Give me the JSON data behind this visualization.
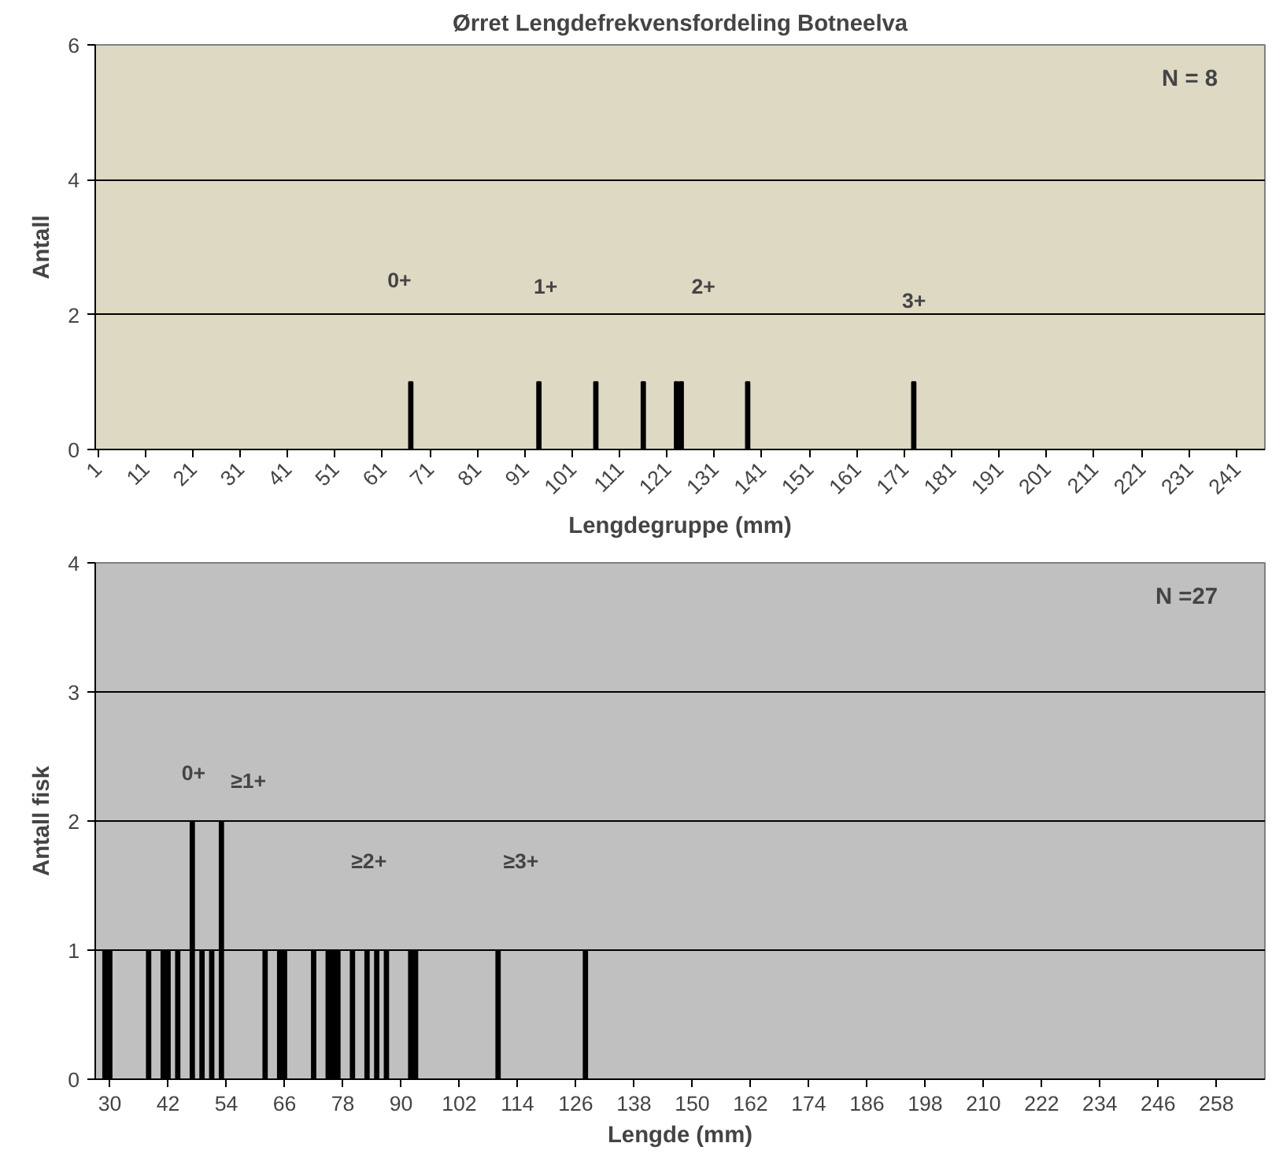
{
  "chart_data": [
    {
      "type": "bar",
      "title": "Ørret Lengdefrekvensfordeling Botneelva",
      "xlabel": "Lengdegruppe (mm)",
      "ylabel": "Antall",
      "color": "#000000",
      "x": [
        67,
        94,
        106,
        116,
        123,
        124,
        138,
        173
      ],
      "values": [
        1,
        1,
        1,
        1,
        1,
        1,
        1,
        1
      ],
      "xlim": [
        0.5,
        247
      ],
      "ylim": [
        0,
        6
      ],
      "xticks": [
        1,
        11,
        21,
        31,
        41,
        51,
        61,
        71,
        81,
        91,
        101,
        111,
        121,
        131,
        141,
        151,
        161,
        171,
        181,
        191,
        201,
        211,
        221,
        231,
        241
      ],
      "yticks": [
        0,
        2,
        4,
        6
      ],
      "grid": "y",
      "annotations": [
        "N = 8",
        "0+",
        "1+",
        "2+",
        "3+"
      ]
    },
    {
      "type": "bar",
      "xlabel": "Lengde (mm)",
      "ylabel": "Antall fisk",
      "color": "#000000",
      "x": [
        29,
        30,
        38,
        41,
        42,
        44,
        47,
        49,
        51,
        53,
        62,
        65,
        66,
        72,
        75,
        76,
        77,
        80,
        83,
        85,
        87,
        92,
        93,
        110,
        128
      ],
      "values": [
        1,
        1,
        1,
        1,
        1,
        1,
        2,
        1,
        1,
        2,
        1,
        1,
        1,
        1,
        1,
        1,
        1,
        1,
        1,
        1,
        1,
        1,
        1,
        1,
        1
      ],
      "xlim": [
        27,
        268
      ],
      "ylim": [
        0,
        4
      ],
      "xticks": [
        30,
        42,
        54,
        66,
        78,
        90,
        102,
        114,
        126,
        138,
        150,
        162,
        174,
        186,
        198,
        210,
        222,
        234,
        246,
        258
      ],
      "yticks": [
        0,
        1,
        2,
        3,
        4
      ],
      "grid": "y",
      "annotations": [
        "N =27",
        "0+",
        "≥1+",
        "≥2+",
        "≥3+"
      ]
    }
  ]
}
